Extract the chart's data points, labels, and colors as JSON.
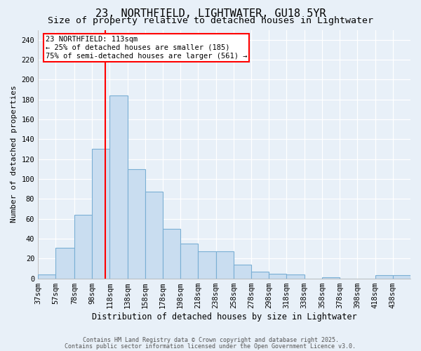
{
  "title1": "23, NORTHFIELD, LIGHTWATER, GU18 5YR",
  "title2": "Size of property relative to detached houses in Lightwater",
  "xlabel": "Distribution of detached houses by size in Lightwater",
  "ylabel": "Number of detached properties",
  "bin_labels": [
    "37sqm",
    "57sqm",
    "78sqm",
    "98sqm",
    "118sqm",
    "138sqm",
    "158sqm",
    "178sqm",
    "198sqm",
    "218sqm",
    "238sqm",
    "258sqm",
    "278sqm",
    "298sqm",
    "318sqm",
    "338sqm",
    "358sqm",
    "378sqm",
    "398sqm",
    "418sqm",
    "438sqm"
  ],
  "bin_edges": [
    37,
    57,
    78,
    98,
    118,
    138,
    158,
    178,
    198,
    218,
    238,
    258,
    278,
    298,
    318,
    338,
    358,
    378,
    398,
    418,
    438,
    458
  ],
  "bar_values": [
    4,
    31,
    64,
    130,
    184,
    110,
    87,
    50,
    35,
    27,
    27,
    14,
    7,
    5,
    4,
    0,
    1,
    0,
    0,
    3,
    3
  ],
  "bar_color": "#c9ddf0",
  "bar_edgecolor": "#7aafd4",
  "background_color": "#e8f0f8",
  "red_line_x": 113,
  "annotation_line1": "23 NORTHFIELD: 113sqm",
  "annotation_line2": "← 25% of detached houses are smaller (185)",
  "annotation_line3": "75% of semi-detached houses are larger (561) →",
  "ylim": [
    0,
    250
  ],
  "yticks": [
    0,
    20,
    40,
    60,
    80,
    100,
    120,
    140,
    160,
    180,
    200,
    220,
    240
  ],
  "footer1": "Contains HM Land Registry data © Crown copyright and database right 2025.",
  "footer2": "Contains public sector information licensed under the Open Government Licence v3.0.",
  "title1_fontsize": 11,
  "title2_fontsize": 9.5,
  "xlabel_fontsize": 8.5,
  "ylabel_fontsize": 8,
  "tick_fontsize": 7.5,
  "annot_fontsize": 7.5,
  "footer_fontsize": 6
}
